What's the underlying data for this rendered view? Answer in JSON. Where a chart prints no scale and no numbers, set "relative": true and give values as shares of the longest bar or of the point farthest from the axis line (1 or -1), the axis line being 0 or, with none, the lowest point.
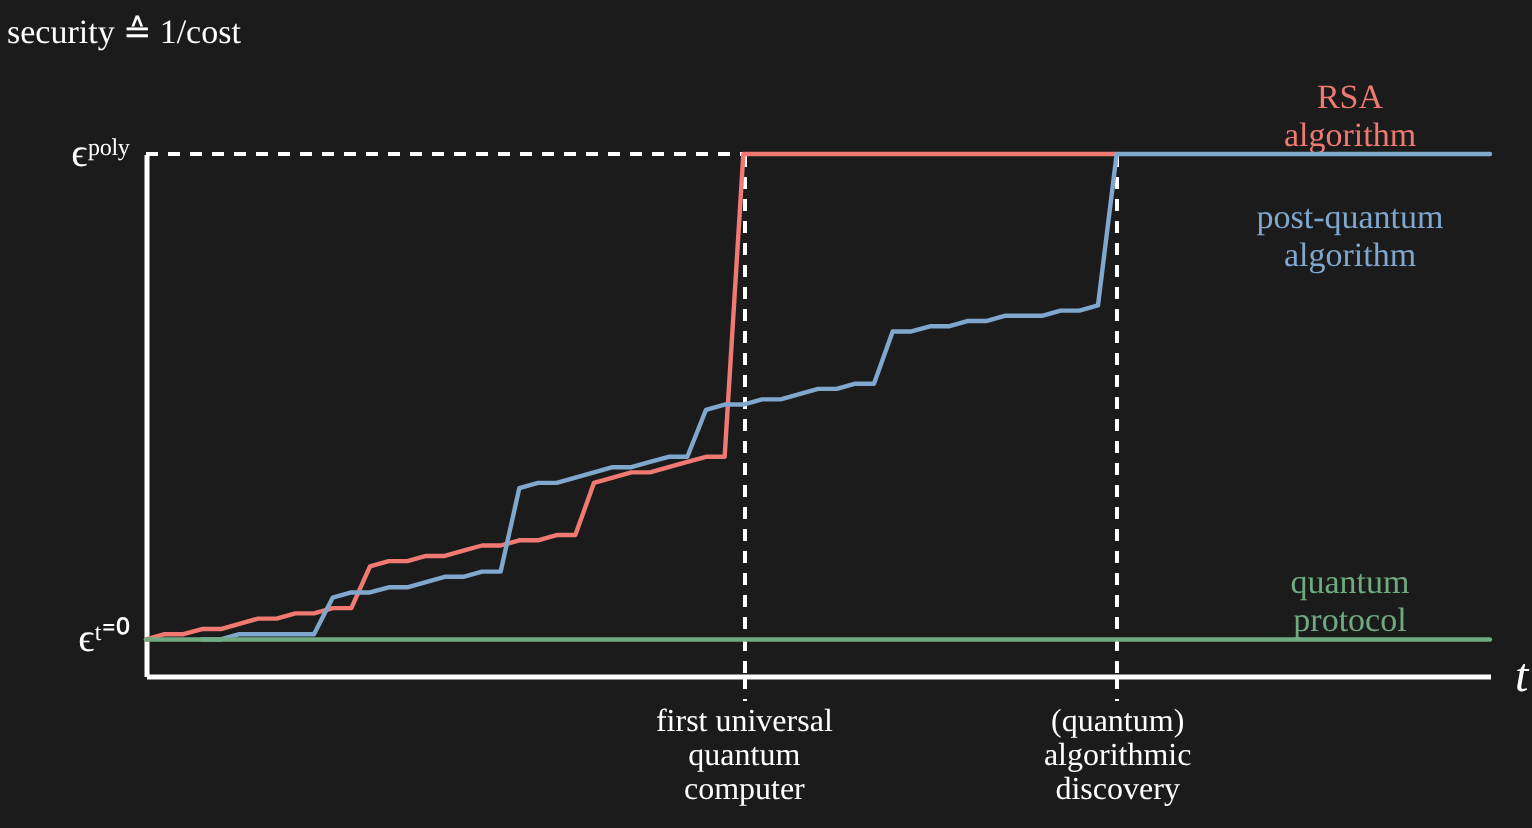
{
  "chart_data": {
    "type": "line",
    "relative": true,
    "xlabel": "t",
    "ylabel": "security ≙ 1/cost",
    "ylim": [
      0,
      1
    ],
    "tick_labels": "x",
    "grid": "x",
    "line_style": "solid",
    "marker": "none",
    "categories": [
      null,
      null,
      null,
      null,
      null,
      null,
      null,
      null,
      null,
      null,
      null,
      null,
      null,
      null,
      null,
      null,
      null,
      null,
      null,
      null,
      null,
      null,
      null,
      null,
      null,
      null,
      null,
      null,
      null,
      null,
      null,
      null,
      "first universal\nquantum\ncomputer",
      null,
      null,
      null,
      null,
      null,
      null,
      null,
      null,
      null,
      null,
      null,
      null,
      null,
      null,
      null,
      null,
      null,
      null,
      null,
      "(quantum)\nalgorithmic\ndiscovery",
      null,
      null,
      null,
      null,
      null,
      null,
      null,
      null,
      null,
      null,
      null,
      null,
      null,
      null,
      null,
      null,
      null,
      null,
      null,
      null
    ],
    "series": [
      {
        "name": "RSA\nalgorithm",
        "color": "#f07a72",
        "values": [
          0.07,
          0.08,
          0.08,
          0.09,
          0.09,
          0.1,
          0.11,
          0.11,
          0.12,
          0.12,
          0.13,
          0.13,
          0.21,
          0.22,
          0.22,
          0.23,
          0.23,
          0.24,
          0.25,
          0.25,
          0.26,
          0.26,
          0.27,
          0.27,
          0.37,
          0.38,
          0.39,
          0.39,
          0.4,
          0.41,
          0.42,
          0.42,
          1,
          1,
          1,
          1,
          1,
          1,
          1,
          1,
          1,
          1,
          1,
          1,
          1,
          1,
          1,
          1,
          1,
          1,
          1,
          1,
          1,
          null,
          null,
          null,
          null,
          null,
          null,
          null,
          null,
          null,
          null,
          null,
          null,
          null,
          null,
          null,
          null,
          null,
          null,
          null,
          null
        ]
      },
      {
        "name": "post-quantum\nalgorithm",
        "color": "#80a8cf",
        "values": [
          null,
          null,
          null,
          0.07,
          0.07,
          0.08,
          0.08,
          0.08,
          0.08,
          0.08,
          0.15,
          0.16,
          0.16,
          0.17,
          0.17,
          0.18,
          0.19,
          0.19,
          0.2,
          0.2,
          0.36,
          0.37,
          0.37,
          0.38,
          0.39,
          0.4,
          0.4,
          0.41,
          0.42,
          0.42,
          0.51,
          0.52,
          0.52,
          0.53,
          0.53,
          0.54,
          0.55,
          0.55,
          0.56,
          0.56,
          0.66,
          0.66,
          0.67,
          0.67,
          0.68,
          0.68,
          0.69,
          0.69,
          0.69,
          0.7,
          0.7,
          0.71,
          1,
          1,
          1,
          1,
          1,
          1,
          1,
          1,
          1,
          1,
          1,
          1,
          1,
          1,
          1,
          1,
          1,
          1,
          1,
          1,
          1
        ]
      },
      {
        "name": "quantum\nprotocol",
        "color": "#6faa80",
        "values": [
          0.07,
          0.07,
          0.07,
          0.07,
          0.07,
          0.07,
          0.07,
          0.07,
          0.07,
          0.07,
          0.07,
          0.07,
          0.07,
          0.07,
          0.07,
          0.07,
          0.07,
          0.07,
          0.07,
          0.07,
          0.07,
          0.07,
          0.07,
          0.07,
          0.07,
          0.07,
          0.07,
          0.07,
          0.07,
          0.07,
          0.07,
          0.07,
          0.07,
          0.07,
          0.07,
          0.07,
          0.07,
          0.07,
          0.07,
          0.07,
          0.07,
          0.07,
          0.07,
          0.07,
          0.07,
          0.07,
          0.07,
          0.07,
          0.07,
          0.07,
          0.07,
          0.07,
          0.07,
          0.07,
          0.07,
          0.07,
          0.07,
          0.07,
          0.07,
          0.07,
          0.07,
          0.07,
          0.07,
          0.07,
          0.07,
          0.07,
          0.07,
          0.07,
          0.07,
          0.07,
          0.07,
          0.07,
          0.07
        ]
      }
    ],
    "ref_lines": [
      {
        "axis": "y",
        "value": 1,
        "label": "ϵᵖᵒˡʸ",
        "color": "#ffffff",
        "line_style": "dashed"
      }
    ],
    "annotations": [
      "ϵᵗ⁼⁰"
    ]
  }
}
